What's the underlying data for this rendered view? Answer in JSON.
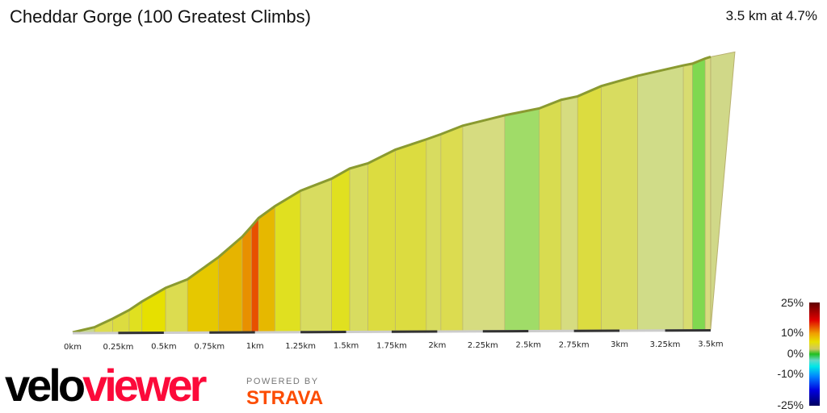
{
  "header": {
    "title": "Cheddar Gorge (100 Greatest Climbs)",
    "summary": "3.5 km at 4.7%"
  },
  "branding": {
    "logo_part1": "velo",
    "logo_part2": "viewer",
    "powered_by": "POWERED BY",
    "strava": "STRAVA"
  },
  "chart_data": {
    "type": "area",
    "xlabel": "",
    "ylabel": "",
    "xlim": [
      0,
      3.5
    ],
    "x_ticks": [
      "0km",
      "0.25km",
      "0.5km",
      "0.75km",
      "1km",
      "1.25km",
      "1.5km",
      "1.75km",
      "2km",
      "2.25km",
      "2.5km",
      "2.75km",
      "3km",
      "3.25km",
      "3.5km"
    ],
    "points_km": [
      0,
      0.12,
      0.22,
      0.31,
      0.38,
      0.51,
      0.63,
      0.8,
      0.93,
      0.98,
      1.02,
      1.11,
      1.25,
      1.42,
      1.52,
      1.62,
      1.77,
      1.94,
      2.02,
      2.14,
      2.37,
      2.56,
      2.68,
      2.77,
      2.9,
      3.1,
      3.35,
      3.4,
      3.47,
      3.5
    ],
    "elevation_rel_m": [
      0,
      3,
      8,
      13,
      18,
      26,
      31,
      44,
      56,
      62,
      67,
      74,
      83,
      90,
      96,
      99,
      107,
      113,
      116,
      121,
      127,
      131,
      136,
      138,
      144,
      150,
      156,
      157,
      160,
      161
    ],
    "segment_colors": [
      "#c8d890",
      "#dcdc50",
      "#dcdc40",
      "#e0e020",
      "#e6e000",
      "#dcdc50",
      "#e6c800",
      "#e6b400",
      "#e89000",
      "#e85000",
      "#e6b800",
      "#e0e020",
      "#d8dc60",
      "#e0e020",
      "#d8dc60",
      "#dcdc40",
      "#dcdc40",
      "#d8dc60",
      "#dcdc50",
      "#d6dc80",
      "#a0dc68",
      "#d8dc50",
      "#d6dc80",
      "#dcdc40",
      "#d8dc60",
      "#d0dc88",
      "#d8dc70",
      "#80d850",
      "#d8dc80"
    ],
    "legend": {
      "labels": [
        "25%",
        "10%",
        "0%",
        "-10%",
        "-25%"
      ],
      "placement": "bottom-right",
      "colors": [
        "#600000",
        "#e00000",
        "#f0a000",
        "#e8e000",
        "#d0c860",
        "#20c020",
        "#60d8c8",
        "#00e8e8",
        "#0080ff",
        "#0000e0",
        "#000060"
      ]
    }
  }
}
